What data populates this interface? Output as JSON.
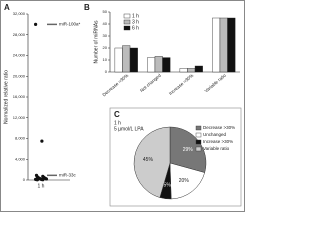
{
  "chart_data": [
    {
      "type": "scatter",
      "panel": "A",
      "y_label": "Normalized relative ratio",
      "categories": [
        "1 h"
      ],
      "series": [
        {
          "color": "#111111",
          "values": [
            30000,
            7500,
            900,
            700,
            600,
            500,
            450,
            400,
            350,
            300,
            250,
            200,
            150,
            120,
            100,
            80,
            60,
            40
          ]
        }
      ],
      "annotations": [
        "miR-100a*",
        "miR-33c"
      ],
      "ylim": [
        0,
        32000
      ],
      "yticks": [
        0,
        {
          "value": 4000,
          "label": "4,000"
        },
        {
          "value": 8000,
          "label": "8,000"
        },
        {
          "value": 12000,
          "label": "12,000"
        },
        {
          "value": 16000,
          "label": "16,000"
        },
        {
          "value": 20000,
          "label": "20,000"
        },
        {
          "value": 24000,
          "label": "24,000"
        },
        {
          "value": 28000,
          "label": "28,000"
        },
        {
          "value": 32000,
          "label": "32,000"
        }
      ]
    },
    {
      "type": "bar",
      "panel": "B",
      "y_label": "Number of miRNAs",
      "categories": [
        "Decrease >30%",
        "Not changed",
        "Increase >30%",
        "Variable ratio"
      ],
      "series": [
        {
          "name": "1 h",
          "color": "#ffffff",
          "values": [
            20,
            12,
            3,
            45
          ]
        },
        {
          "name": "3 h",
          "color": "#bbbbbb",
          "values": [
            22,
            13,
            3,
            45
          ]
        },
        {
          "name": "6 h",
          "color": "#111111",
          "values": [
            20,
            12,
            5,
            45
          ]
        }
      ],
      "ylim": [
        0,
        50
      ],
      "yticks": [
        0,
        10,
        20,
        30,
        40,
        50
      ]
    },
    {
      "type": "pie",
      "panel": "C",
      "title": "1 h",
      "subtitle": "5 µmol/L LPA",
      "categories": [
        "Decrease >30%",
        "Unchanged",
        "Increase >30%",
        "Variable ratio"
      ],
      "values": [
        29,
        20,
        5,
        45
      ],
      "value_labels": [
        "29%",
        "20%",
        "5%",
        "45%"
      ],
      "colors": [
        "#777777",
        "#ffffff",
        "#111111",
        "#cccccc"
      ]
    }
  ]
}
